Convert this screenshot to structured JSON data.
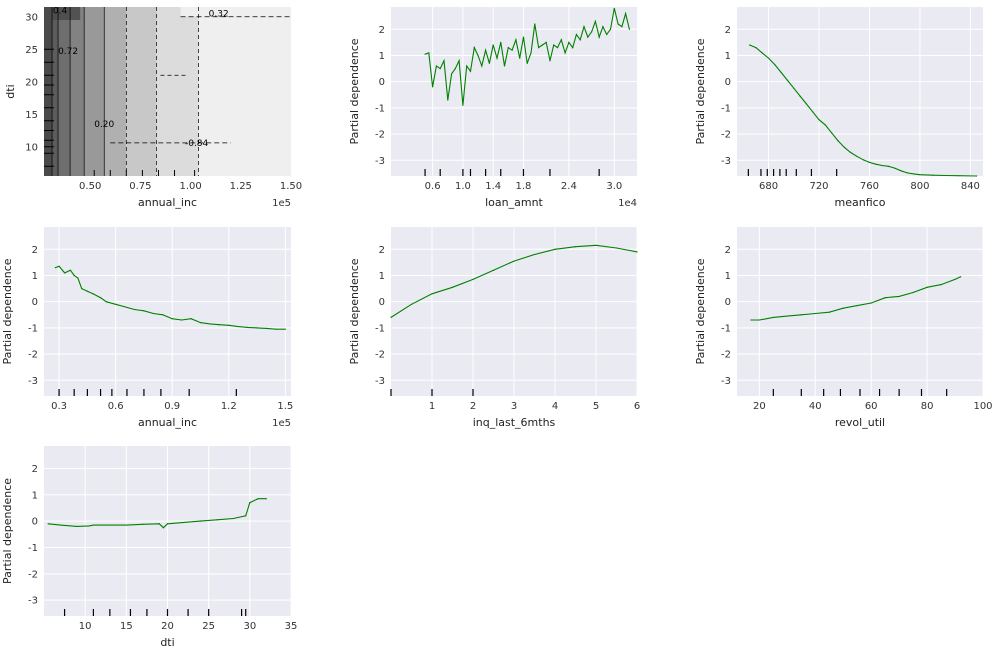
{
  "figure": {
    "background": "#ffffff",
    "panel_background": "#eaeaf2",
    "grid_color": "#ffffff",
    "line_color": "#008000",
    "rug_color": "#000000",
    "ylabel": "Partial dependence",
    "panel_ylim": [
      -3.6,
      2.85
    ],
    "panel_yticks": [
      -3,
      -2,
      -1,
      0,
      1,
      2
    ]
  },
  "chart_data": [
    {
      "id": "contour",
      "type": "heatmap",
      "xlabel": "annual_inc",
      "ylabel": "dti",
      "x_offset_text": "1e5",
      "xlim": [
        0.27,
        1.5
      ],
      "ylim": [
        5.5,
        31.5
      ],
      "xticks": [
        "0.50",
        "0.75",
        "1.00",
        "1.25",
        "1.50"
      ],
      "xtick_values": [
        0.5,
        0.75,
        1.0,
        1.25,
        1.5
      ],
      "yticks": [
        "10",
        "15",
        "20",
        "25",
        "30"
      ],
      "ytick_values": [
        10,
        15,
        20,
        25,
        30
      ],
      "x_breaks": [
        0.27,
        0.31,
        0.34,
        0.4,
        0.47,
        0.57,
        0.68,
        0.83,
        1.04,
        1.5
      ],
      "levels": [
        "#4a4a4a",
        "#5c5c5c",
        "#6e6e6e",
        "#828282",
        "#999999",
        "#b0b0b0",
        "#c8c8c8",
        "#dcdcdc",
        "#efefef"
      ],
      "contour_labels": [
        {
          "text": "0.32",
          "x": 1.14,
          "y": 30.5
        },
        {
          "text": "0.72",
          "x": 0.39,
          "y": 24.7
        },
        {
          "text": "0.20",
          "x": 0.57,
          "y": 13.5
        },
        {
          "text": "-0.84",
          "x": 1.03,
          "y": 10.6
        },
        {
          "text": "0.4",
          "x": 0.35,
          "y": 31.0
        }
      ]
    },
    {
      "id": "loan_amnt",
      "type": "line",
      "xlabel": "loan_amnt",
      "x_offset_text": "1e4",
      "xlim": [
        0.05,
        3.3
      ],
      "xticks": [
        "0.6",
        "1.0",
        "1.4",
        "1.8",
        "2.4",
        "3.0"
      ],
      "xtick_values": [
        0.6,
        1.0,
        1.4,
        1.8,
        2.4,
        3.0
      ],
      "rug": [
        0.5,
        0.7,
        1.0,
        1.1,
        1.3,
        1.5,
        1.8,
        2.15,
        2.8
      ],
      "x": [
        0.5,
        0.55,
        0.6,
        0.65,
        0.7,
        0.75,
        0.8,
        0.85,
        0.9,
        0.95,
        1.0,
        1.05,
        1.1,
        1.15,
        1.2,
        1.25,
        1.3,
        1.35,
        1.4,
        1.45,
        1.5,
        1.55,
        1.6,
        1.65,
        1.7,
        1.75,
        1.8,
        1.85,
        1.9,
        1.95,
        2.0,
        2.05,
        2.1,
        2.15,
        2.2,
        2.25,
        2.3,
        2.35,
        2.4,
        2.45,
        2.5,
        2.55,
        2.6,
        2.65,
        2.7,
        2.75,
        2.8,
        2.85,
        2.9,
        2.95,
        3.0,
        3.05,
        3.1,
        3.15,
        3.2
      ],
      "y": [
        1.05,
        1.1,
        -0.2,
        0.6,
        0.5,
        0.8,
        -0.7,
        0.3,
        0.5,
        0.8,
        -0.9,
        0.6,
        0.4,
        1.3,
        1.0,
        0.6,
        1.2,
        0.7,
        1.4,
        0.9,
        1.5,
        0.6,
        1.3,
        1.2,
        1.6,
        0.9,
        1.7,
        0.7,
        1.1,
        2.2,
        1.3,
        1.4,
        1.5,
        0.8,
        1.4,
        1.3,
        1.6,
        1.1,
        1.5,
        1.3,
        1.8,
        1.6,
        2.1,
        1.7,
        1.9,
        2.3,
        1.7,
        2.1,
        1.8,
        2.0,
        2.8,
        2.2,
        2.1,
        2.6,
        2.0
      ]
    },
    {
      "id": "meanfico",
      "type": "line",
      "xlabel": "meanfico",
      "xlim": [
        655,
        850
      ],
      "xticks": [
        "680",
        "720",
        "760",
        "800",
        "840"
      ],
      "xtick_values": [
        680,
        720,
        760,
        800,
        840
      ],
      "rug": [
        664,
        674,
        679,
        684,
        689,
        694,
        702,
        714,
        734
      ],
      "x": [
        665,
        670,
        675,
        680,
        685,
        690,
        695,
        700,
        705,
        710,
        715,
        720,
        725,
        730,
        735,
        740,
        745,
        750,
        755,
        760,
        765,
        770,
        775,
        780,
        785,
        790,
        795,
        800,
        810,
        820,
        830,
        845
      ],
      "y": [
        1.4,
        1.3,
        1.1,
        0.9,
        0.65,
        0.35,
        0.05,
        -0.25,
        -0.55,
        -0.85,
        -1.15,
        -1.45,
        -1.65,
        -1.95,
        -2.25,
        -2.5,
        -2.7,
        -2.85,
        -2.98,
        -3.08,
        -3.15,
        -3.2,
        -3.23,
        -3.3,
        -3.4,
        -3.48,
        -3.52,
        -3.55,
        -3.57,
        -3.58,
        -3.59,
        -3.6
      ]
    },
    {
      "id": "annual_inc",
      "type": "line",
      "xlabel": "annual_inc",
      "x_offset_text": "1e5",
      "xlim": [
        0.22,
        1.53
      ],
      "xticks": [
        "0.3",
        "0.6",
        "0.9",
        "1.2",
        "1.5"
      ],
      "xtick_values": [
        0.3,
        0.6,
        0.9,
        1.2,
        1.5
      ],
      "rug": [
        0.3,
        0.38,
        0.45,
        0.52,
        0.58,
        0.66,
        0.75,
        0.84,
        0.99,
        1.24
      ],
      "x": [
        0.28,
        0.3,
        0.33,
        0.36,
        0.38,
        0.4,
        0.42,
        0.45,
        0.48,
        0.52,
        0.55,
        0.6,
        0.65,
        0.7,
        0.75,
        0.8,
        0.85,
        0.9,
        0.95,
        1.0,
        1.05,
        1.1,
        1.15,
        1.2,
        1.25,
        1.3,
        1.35,
        1.4,
        1.45,
        1.5
      ],
      "y": [
        1.3,
        1.35,
        1.1,
        1.2,
        1.0,
        0.9,
        0.5,
        0.4,
        0.3,
        0.15,
        0.0,
        -0.1,
        -0.2,
        -0.3,
        -0.35,
        -0.45,
        -0.5,
        -0.65,
        -0.7,
        -0.65,
        -0.8,
        -0.85,
        -0.88,
        -0.9,
        -0.95,
        -0.98,
        -1.0,
        -1.02,
        -1.05,
        -1.05
      ]
    },
    {
      "id": "inq_last_6mths",
      "type": "line",
      "xlabel": "inq_last_6mths",
      "xlim": [
        0,
        6
      ],
      "xticks": [
        "1",
        "2",
        "3",
        "4",
        "5",
        "6"
      ],
      "xtick_values": [
        1,
        2,
        3,
        4,
        5,
        6
      ],
      "rug": [
        0,
        1,
        2
      ],
      "x": [
        0,
        0.5,
        1,
        1.5,
        2,
        2.5,
        3,
        3.5,
        4,
        4.5,
        5,
        5.5,
        6
      ],
      "y": [
        -0.6,
        -0.1,
        0.3,
        0.55,
        0.85,
        1.2,
        1.55,
        1.8,
        2.0,
        2.1,
        2.15,
        2.05,
        1.9
      ]
    },
    {
      "id": "revol_util",
      "type": "line",
      "xlabel": "revol_util",
      "xlim": [
        12,
        100
      ],
      "xticks": [
        "20",
        "40",
        "60",
        "80",
        "100"
      ],
      "xtick_values": [
        20,
        40,
        60,
        80,
        100
      ],
      "rug": [
        25,
        35,
        43,
        49,
        56,
        63,
        70,
        78,
        87
      ],
      "x": [
        17,
        20,
        25,
        30,
        35,
        40,
        45,
        50,
        55,
        60,
        65,
        70,
        75,
        80,
        85,
        90,
        92
      ],
      "y": [
        -0.7,
        -0.7,
        -0.6,
        -0.55,
        -0.5,
        -0.45,
        -0.4,
        -0.25,
        -0.15,
        -0.05,
        0.15,
        0.2,
        0.35,
        0.55,
        0.65,
        0.85,
        0.95
      ]
    },
    {
      "id": "dti",
      "type": "line",
      "xlabel": "dti",
      "xlim": [
        5,
        35
      ],
      "xticks": [
        "10",
        "15",
        "20",
        "25",
        "30",
        "35"
      ],
      "xtick_values": [
        10,
        15,
        20,
        25,
        30,
        35
      ],
      "rug": [
        7.5,
        11,
        13,
        15.5,
        17.5,
        20,
        22.5,
        25,
        29,
        29.5
      ],
      "x": [
        5.5,
        7,
        9,
        10.5,
        11,
        13,
        15,
        17,
        19,
        19.5,
        20,
        22,
        24,
        26,
        28,
        29.5,
        30,
        31,
        32
      ],
      "y": [
        -0.1,
        -0.15,
        -0.2,
        -0.18,
        -0.15,
        -0.15,
        -0.15,
        -0.12,
        -0.1,
        -0.25,
        -0.1,
        -0.05,
        0.0,
        0.05,
        0.1,
        0.2,
        0.7,
        0.85,
        0.85
      ]
    }
  ]
}
